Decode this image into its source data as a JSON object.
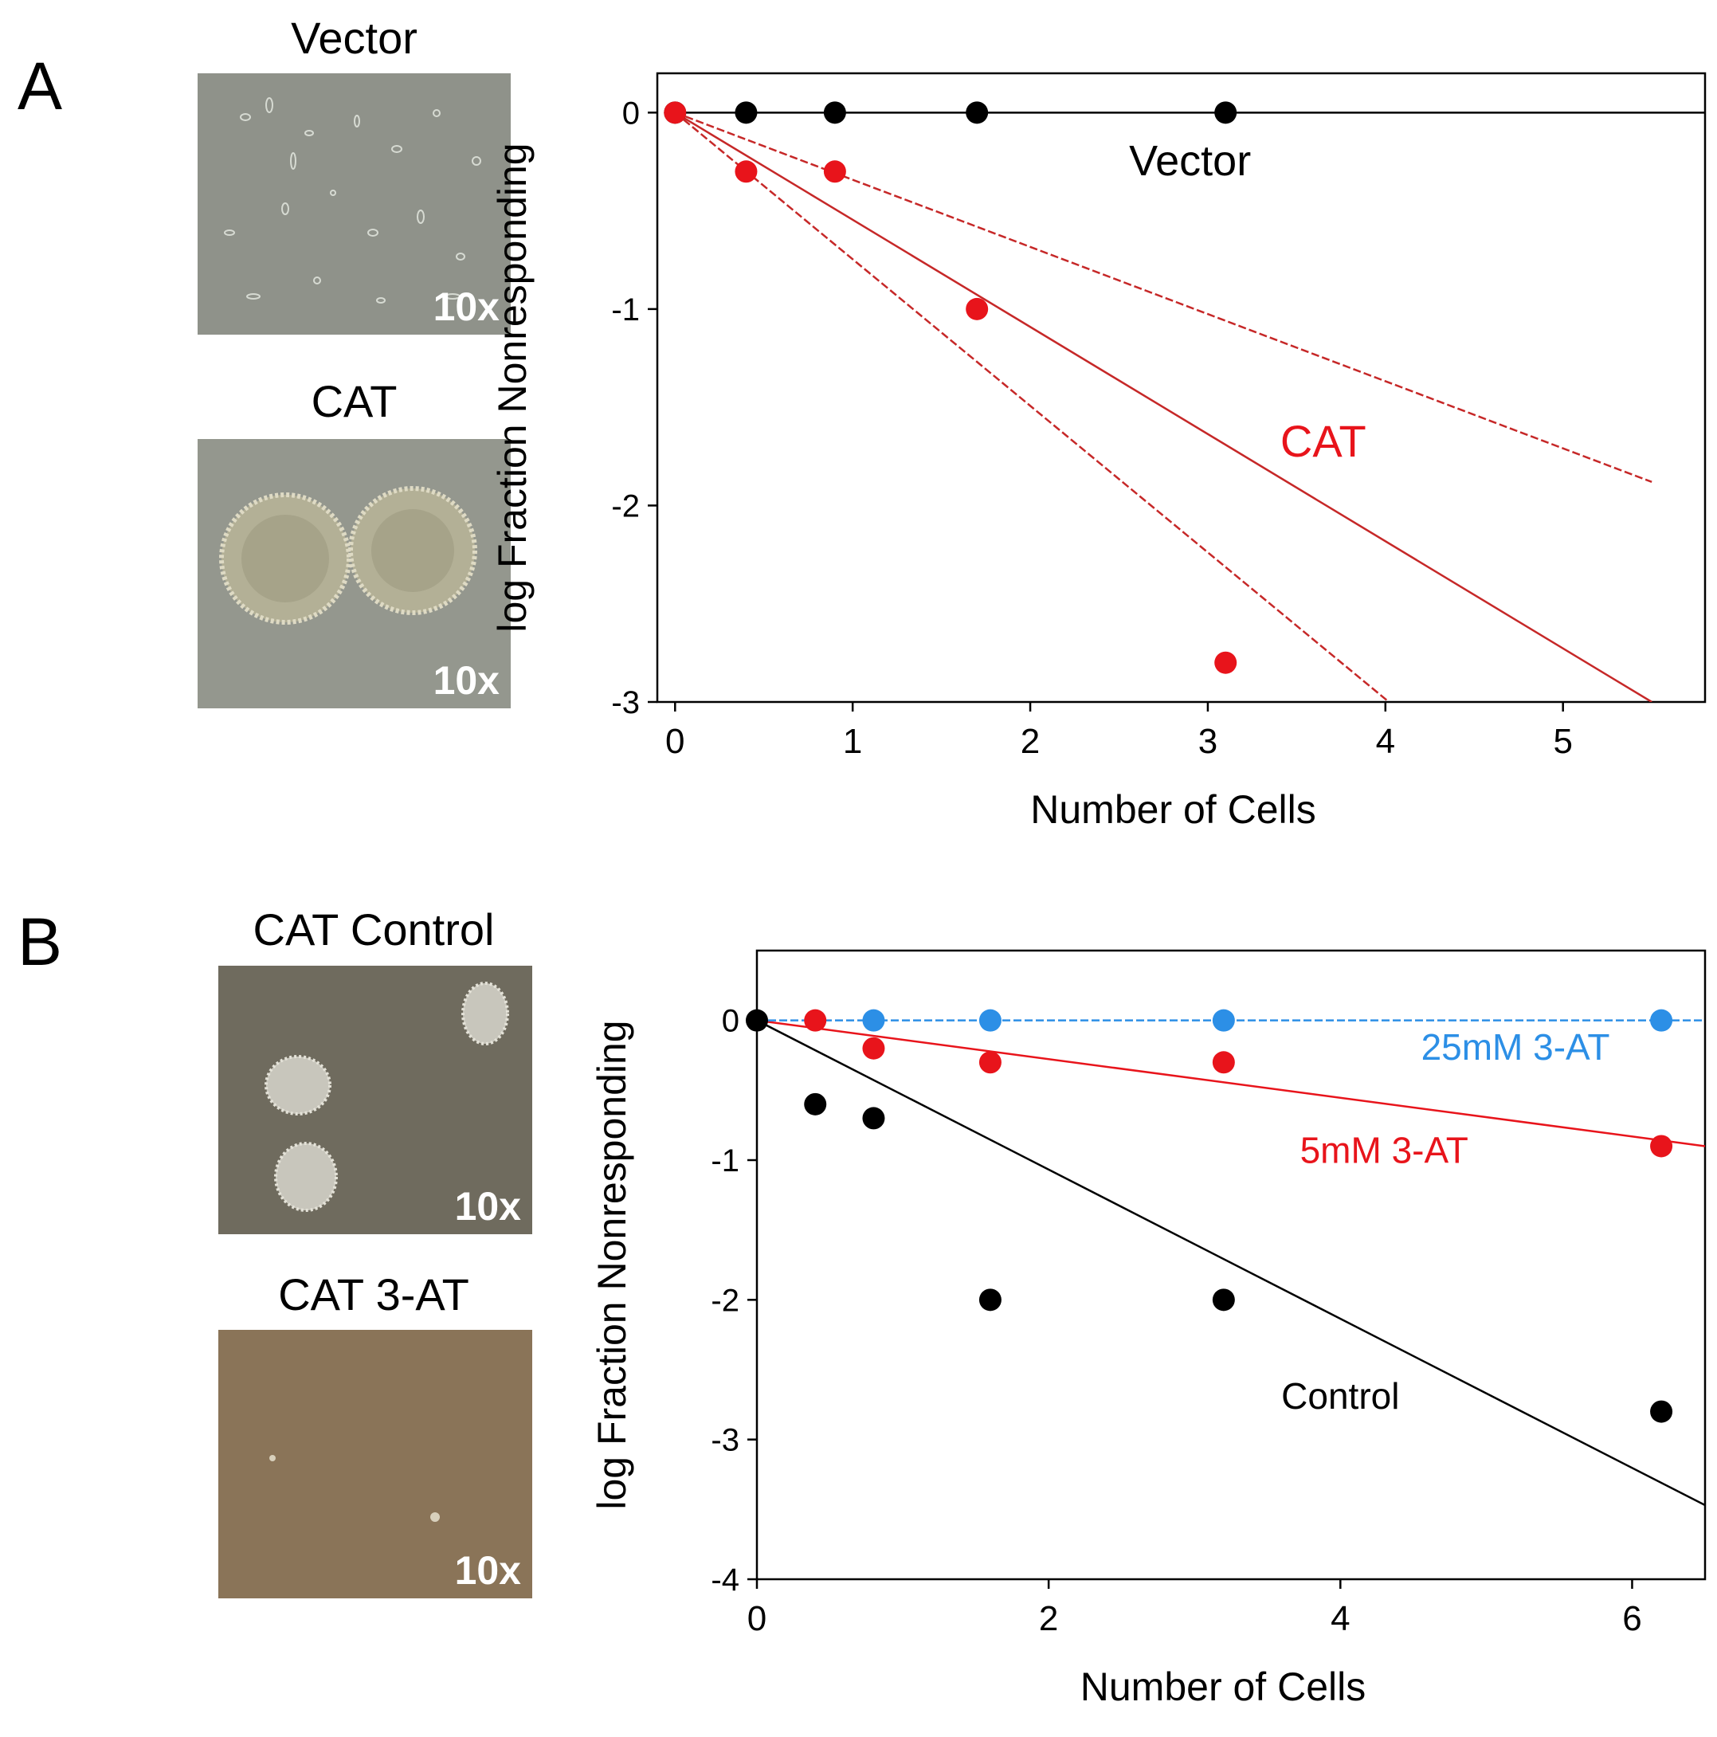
{
  "panelA": {
    "letter": "A",
    "images": [
      {
        "title": "Vector",
        "magnification": "10x"
      },
      {
        "title": "CAT",
        "magnification": "10x"
      }
    ]
  },
  "panelB": {
    "letter": "B",
    "images": [
      {
        "title": "CAT Control",
        "magnification": "10x"
      },
      {
        "title": "CAT 3-AT",
        "magnification": "10x"
      }
    ]
  },
  "colors": {
    "black": "#000000",
    "red": "#e8141b",
    "red_line": "#c62828",
    "blue": "#2c8fe6"
  },
  "chart_data": [
    {
      "type": "scatter",
      "panel": "A",
      "xlabel": "Number of Cells",
      "ylabel": "log Fraction Nonresponding",
      "xlim": [
        -0.1,
        5.8
      ],
      "ylim": [
        -3,
        0.2
      ],
      "xticks": [
        0,
        1,
        2,
        3,
        4,
        5
      ],
      "yticks": [
        0,
        -1,
        -2,
        -3
      ],
      "series": [
        {
          "name": "Vector",
          "color": "#000000",
          "x": [
            0,
            0.4,
            0.9,
            1.7,
            3.1
          ],
          "y": [
            0,
            0,
            0,
            0,
            0
          ]
        },
        {
          "name": "CAT",
          "color": "#e8141b",
          "x": [
            0,
            0.4,
            0.9,
            1.7,
            3.1
          ],
          "y": [
            0,
            -0.3,
            -0.3,
            -1.0,
            -2.8
          ]
        }
      ],
      "fit_lines": [
        {
          "name": "Vector fit",
          "color": "#000000",
          "dash": false,
          "x": [
            0,
            5.8
          ],
          "y": [
            0,
            0
          ]
        },
        {
          "name": "CAT fit upper",
          "color": "#c62828",
          "dash": true,
          "x": [
            0,
            5.5
          ],
          "y": [
            0,
            -1.88
          ]
        },
        {
          "name": "CAT fit",
          "color": "#c62828",
          "dash": false,
          "x": [
            0,
            5.5
          ],
          "y": [
            0,
            -3.0
          ]
        },
        {
          "name": "CAT fit lower",
          "color": "#c62828",
          "dash": true,
          "x": [
            0,
            4.02
          ],
          "y": [
            0,
            -3.0
          ]
        }
      ],
      "annotations": [
        {
          "text": "Vector",
          "color": "#000000",
          "x": 2.9,
          "y": -0.32
        },
        {
          "text": "CAT",
          "color": "#e8141b",
          "x": 3.65,
          "y": -1.75
        }
      ]
    },
    {
      "type": "scatter",
      "panel": "B",
      "xlabel": "Number of Cells",
      "ylabel": "log Fraction Nonresponding",
      "xlim": [
        0,
        6.5
      ],
      "ylim": [
        -4,
        0.5
      ],
      "xticks": [
        0,
        2,
        4,
        6
      ],
      "yticks": [
        0,
        -1,
        -2,
        -3,
        -4
      ],
      "series": [
        {
          "name": "Control",
          "color": "#000000",
          "x": [
            0,
            0.4,
            0.8,
            1.6,
            3.2,
            6.2
          ],
          "y": [
            0,
            -0.6,
            -0.7,
            -2.0,
            -2.0,
            -2.8
          ]
        },
        {
          "name": "5mM 3-AT",
          "color": "#e8141b",
          "x": [
            0.4,
            0.8,
            1.6,
            3.2,
            6.2
          ],
          "y": [
            0,
            -0.2,
            -0.3,
            -0.3,
            -0.9
          ]
        },
        {
          "name": "25mM 3-AT",
          "color": "#2c8fe6",
          "x": [
            0.8,
            1.6,
            3.2,
            6.2
          ],
          "y": [
            0,
            0,
            0,
            0
          ]
        }
      ],
      "fit_lines": [
        {
          "name": "Control fit",
          "color": "#000000",
          "dash": false,
          "x": [
            0,
            6.5
          ],
          "y": [
            0,
            -3.47
          ]
        },
        {
          "name": "5mM 3-AT fit",
          "color": "#e8141b",
          "dash": false,
          "x": [
            0,
            6.5
          ],
          "y": [
            0,
            -0.9
          ]
        },
        {
          "name": "25mM 3-AT fit",
          "color": "#2c8fe6",
          "dash": true,
          "x": [
            0,
            6.5
          ],
          "y": [
            0,
            0
          ]
        }
      ],
      "annotations": [
        {
          "text": "25mM 3-AT",
          "color": "#2c8fe6",
          "x": 5.2,
          "y": -0.28
        },
        {
          "text": "5mM 3-AT",
          "color": "#e8141b",
          "x": 4.3,
          "y": -1.02
        },
        {
          "text": "Control",
          "color": "#000000",
          "x": 4.0,
          "y": -2.78
        }
      ]
    }
  ]
}
